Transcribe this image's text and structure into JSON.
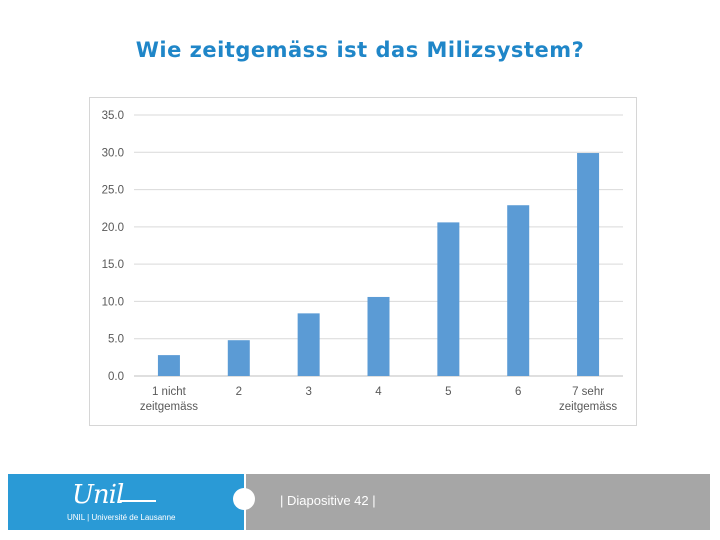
{
  "slide": {
    "title": "Wie zeitgemäss ist das Milizsystem?"
  },
  "chart_data": {
    "type": "bar",
    "title": "",
    "xlabel": "",
    "ylabel": "",
    "ylim": [
      0,
      35
    ],
    "yticks": [
      "0.0",
      "5.0",
      "10.0",
      "15.0",
      "20.0",
      "25.0",
      "30.0",
      "35.0"
    ],
    "categories": [
      [
        "1 nicht",
        "zeitgemäss"
      ],
      [
        "2"
      ],
      [
        "3"
      ],
      [
        "4"
      ],
      [
        "5"
      ],
      [
        "6"
      ],
      [
        "7 sehr",
        "zeitgemäss"
      ]
    ],
    "values": [
      2.8,
      4.8,
      8.4,
      10.6,
      20.6,
      22.9,
      29.9
    ],
    "bar_color": "#5b9bd5",
    "grid": true
  },
  "footer": {
    "logo_script": "Unil",
    "logo_subtitle": "UNIL | Université de Lausanne",
    "slide_number_text": "| Diapositive 42 |",
    "left_color": "#2a9ad6",
    "right_color": "#a6a6a6"
  }
}
